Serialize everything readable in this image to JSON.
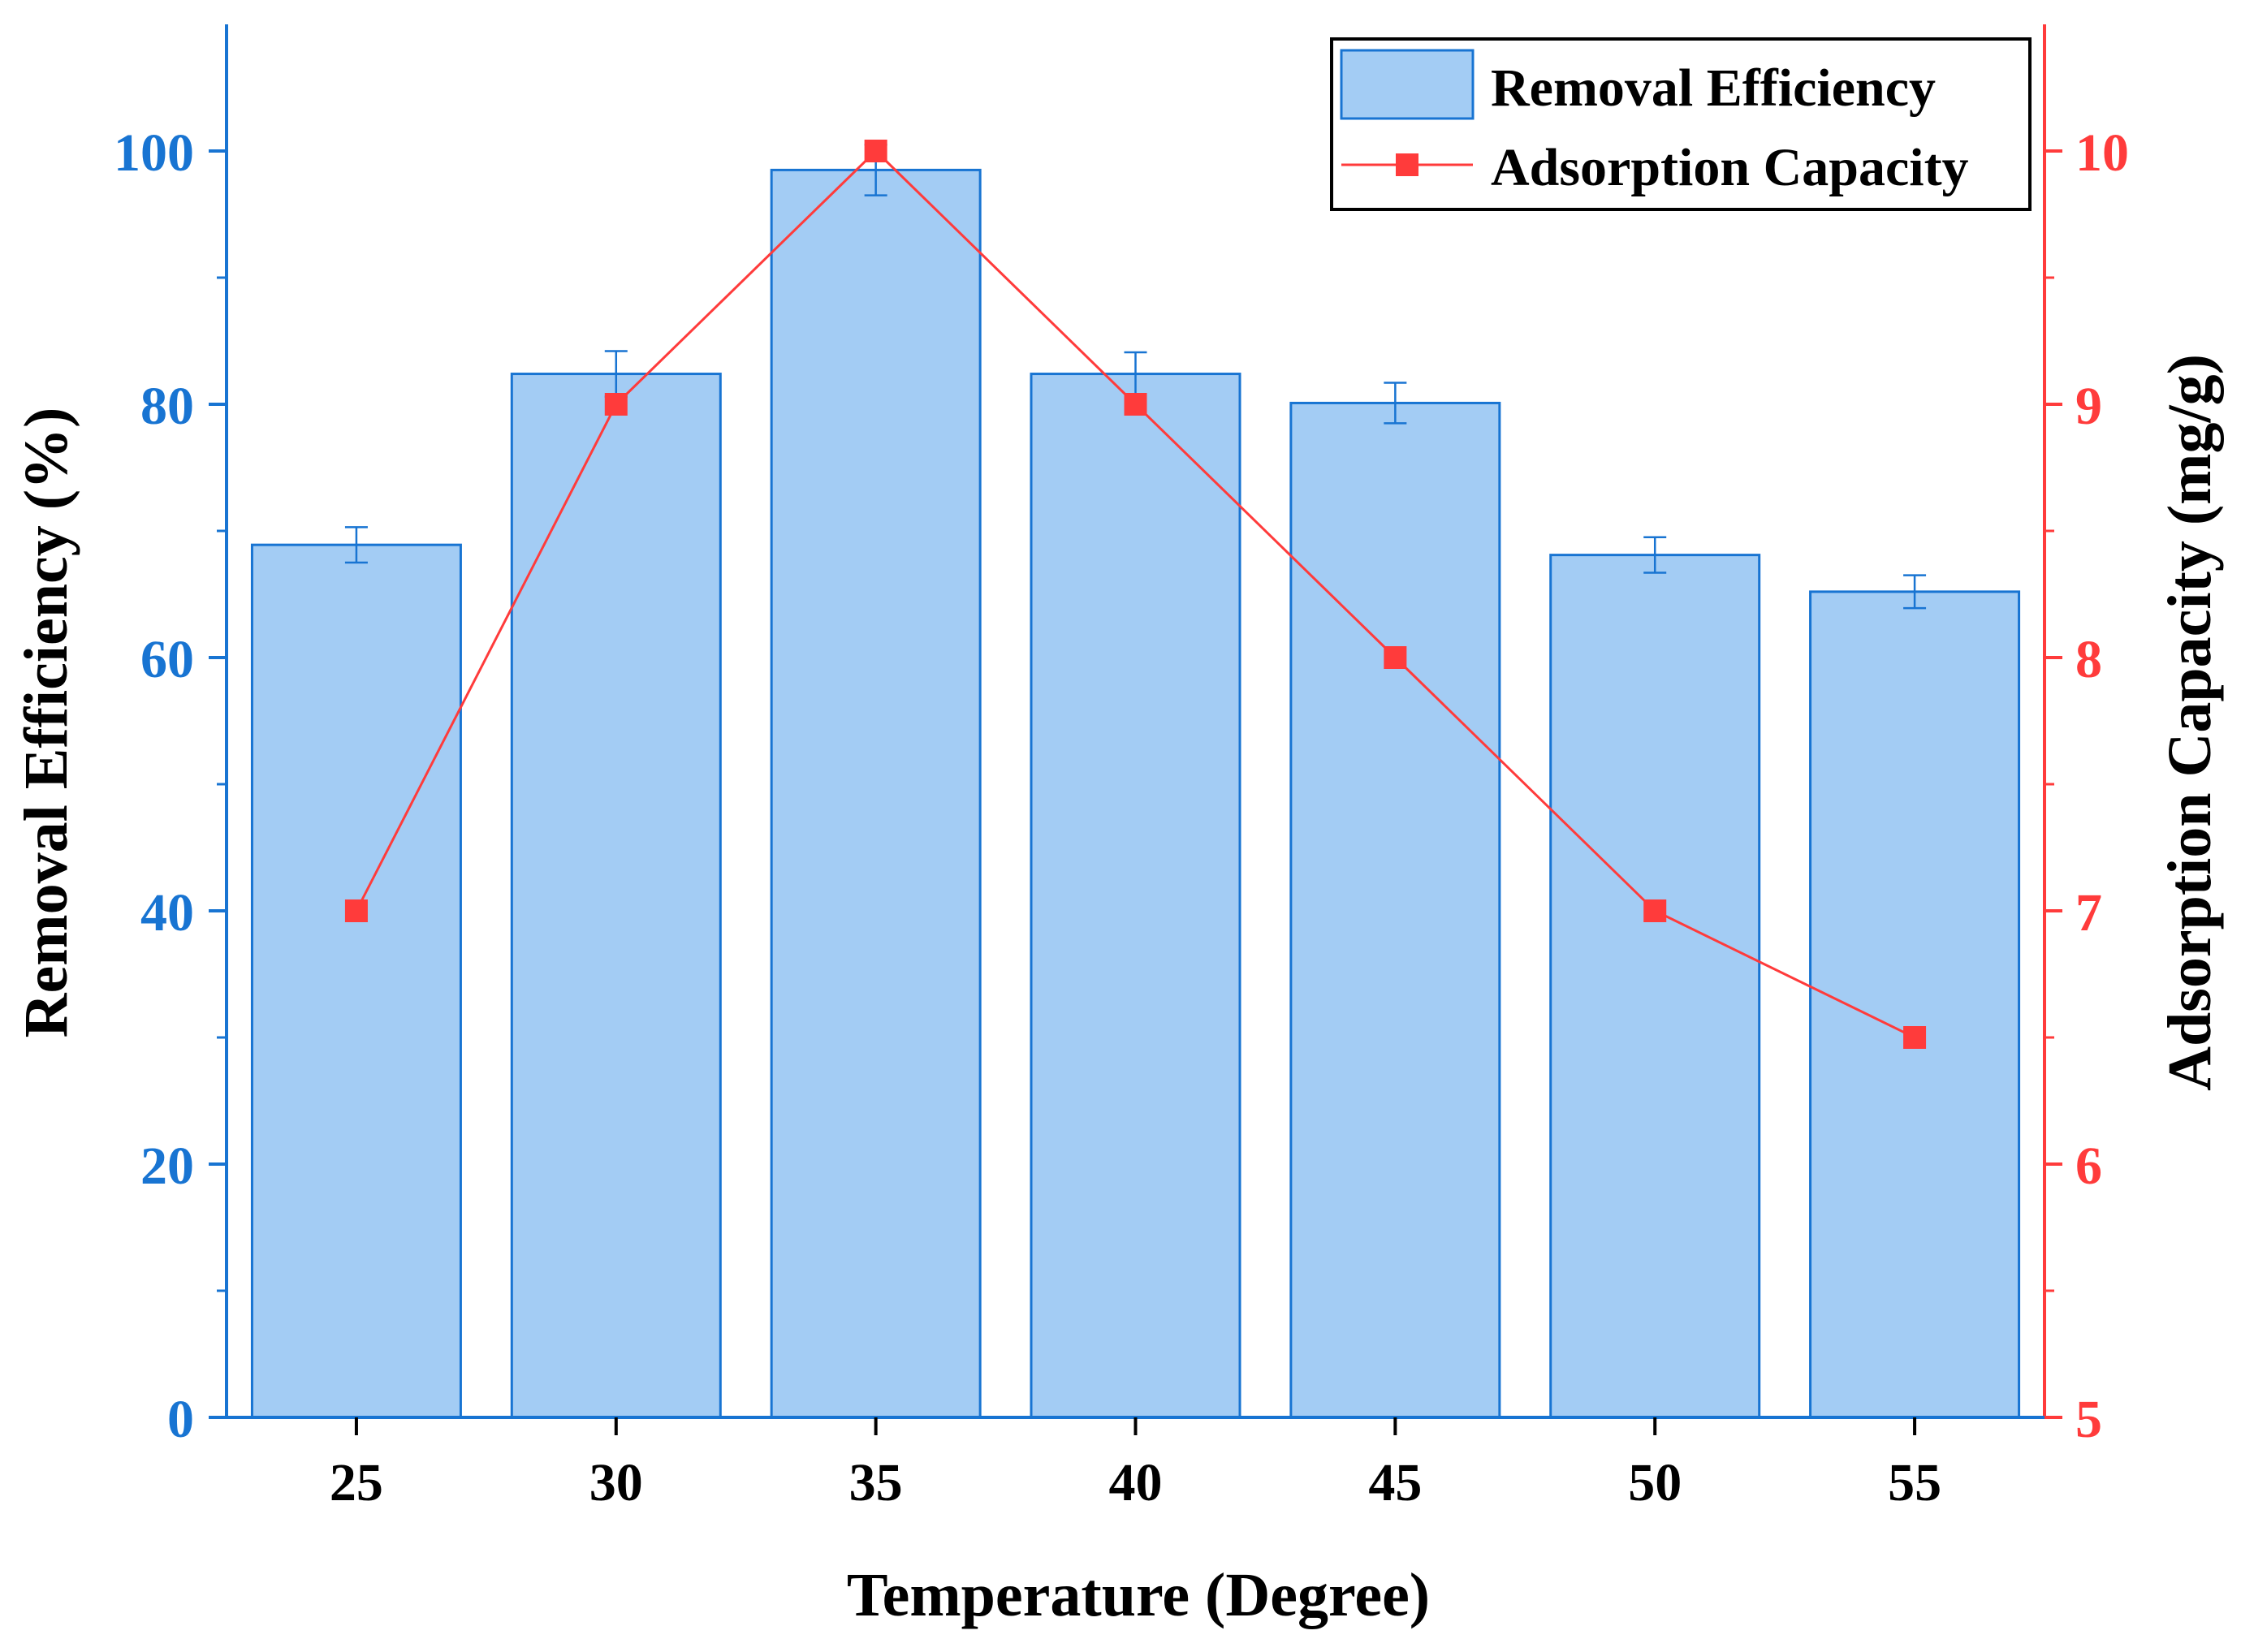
{
  "chart_data": {
    "type": "bar+line",
    "xlabel": "Temperature (Degree)",
    "categories": [
      "25",
      "30",
      "35",
      "40",
      "45",
      "50",
      "55"
    ],
    "series": [
      {
        "name": "Removal Efficiency",
        "kind": "bar",
        "axis": "left",
        "values": [
          68.9,
          82.4,
          98.5,
          82.4,
          80.1,
          68.1,
          65.2
        ],
        "errors": [
          1.4,
          1.8,
          2.0,
          1.7,
          1.6,
          1.4,
          1.3
        ],
        "color": "#A3CCF4",
        "edge_color": "#1874D2"
      },
      {
        "name": "Adsorption Capacity",
        "kind": "line",
        "axis": "right",
        "marker": "square",
        "values": [
          7,
          9,
          10,
          9,
          8,
          7,
          6.5
        ],
        "color": "#FF3B3B"
      }
    ],
    "y_left": {
      "label": "Removal Efficiency (%)",
      "ylim": [
        0,
        110
      ],
      "ticks": [
        "0",
        "20",
        "40",
        "60",
        "80",
        "100"
      ],
      "color": "#1874D2"
    },
    "y_right": {
      "label": "Adsorption Capacity (mg/g)",
      "ylim": [
        5,
        10.5
      ],
      "ticks": [
        "5",
        "6",
        "7",
        "8",
        "9",
        "10"
      ],
      "color": "#FF3B3B"
    },
    "legend": {
      "placement": "top-right",
      "entries": [
        "Removal Efficiency",
        "Adsorption Capacity"
      ]
    },
    "grid": false
  }
}
